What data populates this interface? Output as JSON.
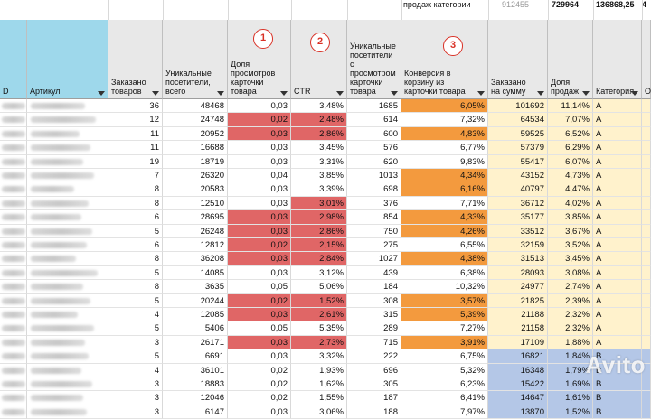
{
  "top": {
    "label": "продаж категории",
    "v1": "912455",
    "v2": "729964",
    "v3": "136868,25",
    "v4": "4"
  },
  "headers": [
    {
      "name": "col-id",
      "label": "D",
      "color": "#9ed8eb"
    },
    {
      "name": "col-artikul",
      "label": "Артикул",
      "color": "#9ed8eb"
    },
    {
      "name": "col-ordered",
      "label": "Заказано товаров",
      "color": "#e8e8e8"
    },
    {
      "name": "col-unique-total",
      "label": "Уникальные посетители, всего",
      "color": "#e8e8e8"
    },
    {
      "name": "col-card-views-share",
      "label": "Доля просмотров карточки товара",
      "color": "#e8e8e8"
    },
    {
      "name": "col-ctr",
      "label": "CTR",
      "color": "#e8e8e8"
    },
    {
      "name": "col-unique-card",
      "label": "Уникальные посетители с просмотром карточки товара",
      "color": "#e8e8e8"
    },
    {
      "name": "col-conversion",
      "label": "Конверсия в корзину из карточки товара",
      "color": "#e8e8e8"
    },
    {
      "name": "col-ordered-sum",
      "label": "Заказано на сумму",
      "color": "#e8e8e8"
    },
    {
      "name": "col-sales-share",
      "label": "Доля продаж",
      "color": "#e8e8e8"
    },
    {
      "name": "col-category",
      "label": "Категория",
      "color": "#e8e8e8"
    },
    {
      "name": "col-extra",
      "label": "О",
      "color": "#e8e8e8"
    }
  ],
  "badges": [
    "1",
    "2",
    "3"
  ],
  "colors": {
    "red": "#e06666",
    "orange": "#f39a3e",
    "yellow": "#fff2cc",
    "blue": "#b4c7e7"
  },
  "rows": [
    {
      "ordered": "36",
      "unique": "48468",
      "share": "0,03",
      "ctr": "3,48%",
      "cardv": "1685",
      "conv": "6,05%",
      "sum": "101692",
      "sales": "11,14%",
      "cat": "A",
      "hs": "",
      "hc": "",
      "hv": "org"
    },
    {
      "ordered": "12",
      "unique": "24748",
      "share": "0,02",
      "ctr": "2,48%",
      "cardv": "614",
      "conv": "7,32%",
      "sum": "64534",
      "sales": "7,07%",
      "cat": "A",
      "hs": "red",
      "hc": "red",
      "hv": ""
    },
    {
      "ordered": "11",
      "unique": "20952",
      "share": "0,03",
      "ctr": "2,86%",
      "cardv": "600",
      "conv": "4,83%",
      "sum": "59525",
      "sales": "6,52%",
      "cat": "A",
      "hs": "red",
      "hc": "red",
      "hv": "org"
    },
    {
      "ordered": "11",
      "unique": "16688",
      "share": "0,03",
      "ctr": "3,45%",
      "cardv": "576",
      "conv": "6,77%",
      "sum": "57379",
      "sales": "6,29%",
      "cat": "A",
      "hs": "",
      "hc": "",
      "hv": ""
    },
    {
      "ordered": "19",
      "unique": "18719",
      "share": "0,03",
      "ctr": "3,31%",
      "cardv": "620",
      "conv": "9,83%",
      "sum": "55417",
      "sales": "6,07%",
      "cat": "A",
      "hs": "",
      "hc": "",
      "hv": ""
    },
    {
      "ordered": "7",
      "unique": "26320",
      "share": "0,04",
      "ctr": "3,85%",
      "cardv": "1013",
      "conv": "4,34%",
      "sum": "43152",
      "sales": "4,73%",
      "cat": "A",
      "hs": "",
      "hc": "",
      "hv": "org"
    },
    {
      "ordered": "8",
      "unique": "20583",
      "share": "0,03",
      "ctr": "3,39%",
      "cardv": "698",
      "conv": "6,16%",
      "sum": "40797",
      "sales": "4,47%",
      "cat": "A",
      "hs": "",
      "hc": "",
      "hv": "org"
    },
    {
      "ordered": "8",
      "unique": "12510",
      "share": "0,03",
      "ctr": "3,01%",
      "cardv": "376",
      "conv": "7,71%",
      "sum": "36712",
      "sales": "4,02%",
      "cat": "A",
      "hs": "",
      "hc": "red",
      "hv": ""
    },
    {
      "ordered": "6",
      "unique": "28695",
      "share": "0,03",
      "ctr": "2,98%",
      "cardv": "854",
      "conv": "4,33%",
      "sum": "35177",
      "sales": "3,85%",
      "cat": "A",
      "hs": "red",
      "hc": "red",
      "hv": "org"
    },
    {
      "ordered": "5",
      "unique": "26248",
      "share": "0,03",
      "ctr": "2,86%",
      "cardv": "750",
      "conv": "4,26%",
      "sum": "33512",
      "sales": "3,67%",
      "cat": "A",
      "hs": "red",
      "hc": "red",
      "hv": "org"
    },
    {
      "ordered": "6",
      "unique": "12812",
      "share": "0,02",
      "ctr": "2,15%",
      "cardv": "275",
      "conv": "6,55%",
      "sum": "32159",
      "sales": "3,52%",
      "cat": "A",
      "hs": "red",
      "hc": "red",
      "hv": ""
    },
    {
      "ordered": "8",
      "unique": "36208",
      "share": "0,03",
      "ctr": "2,84%",
      "cardv": "1027",
      "conv": "4,38%",
      "sum": "31513",
      "sales": "3,45%",
      "cat": "A",
      "hs": "red",
      "hc": "red",
      "hv": "org"
    },
    {
      "ordered": "5",
      "unique": "14085",
      "share": "0,03",
      "ctr": "3,12%",
      "cardv": "439",
      "conv": "6,38%",
      "sum": "28093",
      "sales": "3,08%",
      "cat": "A",
      "hs": "",
      "hc": "",
      "hv": ""
    },
    {
      "ordered": "8",
      "unique": "3635",
      "share": "0,05",
      "ctr": "5,06%",
      "cardv": "184",
      "conv": "10,32%",
      "sum": "24977",
      "sales": "2,74%",
      "cat": "A",
      "hs": "",
      "hc": "",
      "hv": ""
    },
    {
      "ordered": "5",
      "unique": "20244",
      "share": "0,02",
      "ctr": "1,52%",
      "cardv": "308",
      "conv": "3,57%",
      "sum": "21825",
      "sales": "2,39%",
      "cat": "A",
      "hs": "red",
      "hc": "red",
      "hv": "org"
    },
    {
      "ordered": "4",
      "unique": "12085",
      "share": "0,03",
      "ctr": "2,61%",
      "cardv": "315",
      "conv": "5,39%",
      "sum": "21188",
      "sales": "2,32%",
      "cat": "A",
      "hs": "red",
      "hc": "red",
      "hv": "org"
    },
    {
      "ordered": "5",
      "unique": "5406",
      "share": "0,05",
      "ctr": "5,35%",
      "cardv": "289",
      "conv": "7,27%",
      "sum": "21158",
      "sales": "2,32%",
      "cat": "A",
      "hs": "",
      "hc": "",
      "hv": ""
    },
    {
      "ordered": "3",
      "unique": "26171",
      "share": "0,03",
      "ctr": "2,73%",
      "cardv": "715",
      "conv": "3,91%",
      "sum": "17109",
      "sales": "1,88%",
      "cat": "A",
      "hs": "red",
      "hc": "red",
      "hv": "org"
    },
    {
      "ordered": "5",
      "unique": "6691",
      "share": "0,03",
      "ctr": "3,32%",
      "cardv": "222",
      "conv": "6,75%",
      "sum": "16821",
      "sales": "1,84%",
      "cat": "B",
      "hs": "",
      "hc": "",
      "hv": ""
    },
    {
      "ordered": "4",
      "unique": "36101",
      "share": "0,02",
      "ctr": "1,93%",
      "cardv": "696",
      "conv": "5,32%",
      "sum": "16348",
      "sales": "1,79%",
      "cat": "B",
      "hs": "",
      "hc": "",
      "hv": ""
    },
    {
      "ordered": "3",
      "unique": "18883",
      "share": "0,02",
      "ctr": "1,62%",
      "cardv": "305",
      "conv": "6,23%",
      "sum": "15422",
      "sales": "1,69%",
      "cat": "B",
      "hs": "",
      "hc": "",
      "hv": ""
    },
    {
      "ordered": "3",
      "unique": "12046",
      "share": "0,02",
      "ctr": "1,55%",
      "cardv": "187",
      "conv": "6,41%",
      "sum": "14647",
      "sales": "1,61%",
      "cat": "B",
      "hs": "",
      "hc": "",
      "hv": ""
    },
    {
      "ordered": "3",
      "unique": "6147",
      "share": "0,03",
      "ctr": "3,06%",
      "cardv": "188",
      "conv": "7,97%",
      "sum": "13870",
      "sales": "1,52%",
      "cat": "B",
      "hs": "",
      "hc": "",
      "hv": ""
    }
  ],
  "watermark": "Avito"
}
